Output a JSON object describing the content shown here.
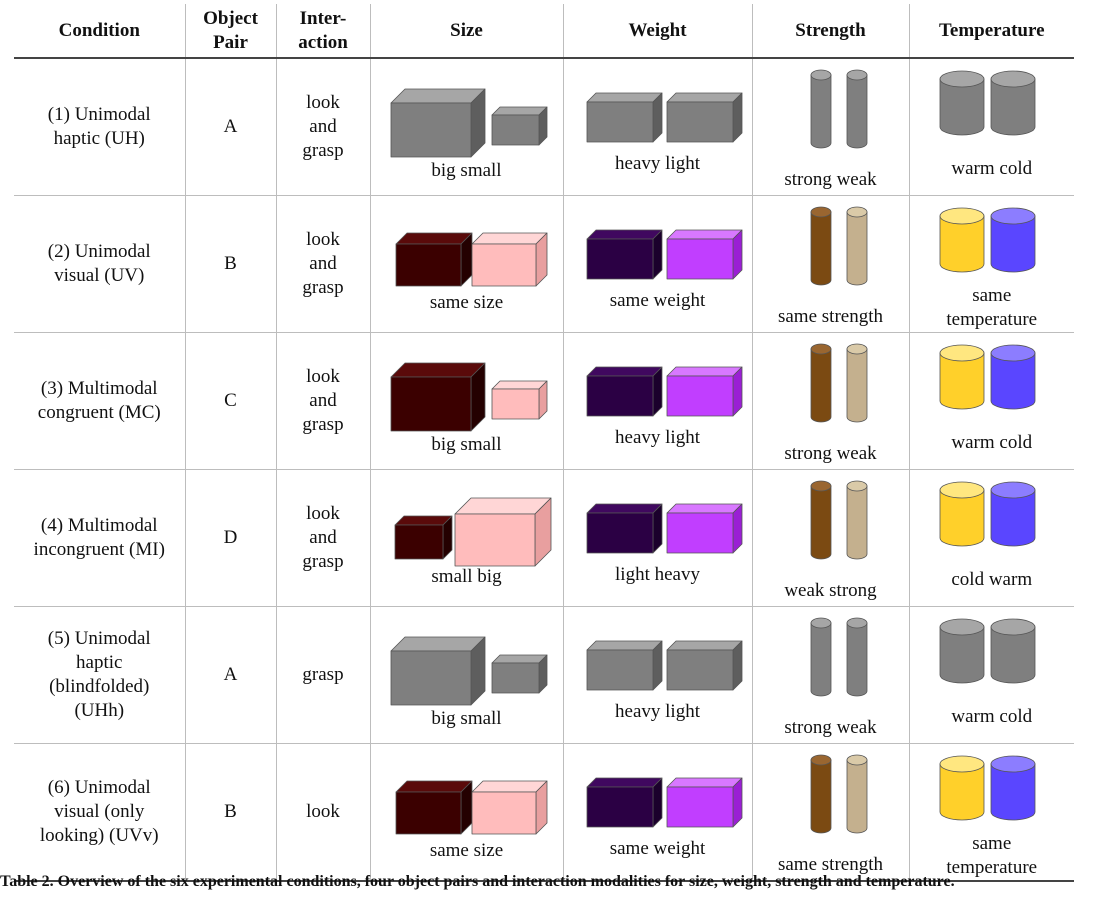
{
  "colors": {
    "gray": {
      "front": "#7f7f7f",
      "top": "#a6a6a6",
      "side": "#5e5e5e"
    },
    "darkred": {
      "front": "#3b0000",
      "top": "#5a0a0a",
      "side": "#240000"
    },
    "pink": {
      "front": "#ffbcbc",
      "top": "#ffd6d6",
      "side": "#e89f9f"
    },
    "darkpurple": {
      "front": "#2b0044",
      "top": "#40085f",
      "side": "#1b002c"
    },
    "violet": {
      "front": "#c13eff",
      "top": "#d878ff",
      "side": "#9a1fd4"
    },
    "brown": {
      "front": "#7b4a12",
      "top": "#9a6630",
      "side": "#5c350a"
    },
    "beige": {
      "front": "#c4b08e",
      "top": "#dacaa8",
      "side": "#a39072"
    },
    "yellow": {
      "front": "#ffd02a",
      "top": "#ffe780",
      "side": "#e0b000"
    },
    "blue": {
      "front": "#5a46ff",
      "top": "#8c7dff",
      "side": "#3a28e0"
    }
  },
  "headers": {
    "condition": "Condition",
    "pair": "Object Pair",
    "interaction": "Inter- action",
    "size": "Size",
    "weight": "Weight",
    "strength": "Strength",
    "temperature": "Temperature"
  },
  "rows": [
    {
      "condition": "(1) Unimodal haptic (UH)",
      "pair": "A",
      "interaction": "look and grasp",
      "size": {
        "label": "big small",
        "left": "gray",
        "right": "gray",
        "variant": "bigsmall"
      },
      "weight": {
        "label": "heavy light",
        "left": "gray",
        "right": "gray"
      },
      "strength": {
        "label": "strong weak",
        "left": "gray",
        "right": "gray"
      },
      "temperature": {
        "label": "warm cold",
        "left": "gray",
        "right": "gray"
      }
    },
    {
      "condition": "(2) Unimodal visual (UV)",
      "pair": "B",
      "interaction": "look and grasp",
      "size": {
        "label": "same size",
        "left": "darkred",
        "right": "pink",
        "variant": "same"
      },
      "weight": {
        "label": "same weight",
        "left": "darkpurple",
        "right": "violet"
      },
      "strength": {
        "label": "same strength",
        "left": "brown",
        "right": "beige"
      },
      "temperature": {
        "label": "same temperature",
        "left": "yellow",
        "right": "blue"
      }
    },
    {
      "condition": "(3) Multimodal congruent (MC)",
      "pair": "C",
      "interaction": "look and grasp",
      "size": {
        "label": "big small",
        "left": "darkred",
        "right": "pink",
        "variant": "bigsmall"
      },
      "weight": {
        "label": "heavy light",
        "left": "darkpurple",
        "right": "violet"
      },
      "strength": {
        "label": "strong weak",
        "left": "brown",
        "right": "beige"
      },
      "temperature": {
        "label": "warm cold",
        "left": "yellow",
        "right": "blue"
      }
    },
    {
      "condition": "(4) Multimodal incongruent (MI)",
      "pair": "D",
      "interaction": "look and grasp",
      "size": {
        "label": "small big",
        "left": "darkred",
        "right": "pink",
        "variant": "smallbig"
      },
      "weight": {
        "label": "light heavy",
        "left": "darkpurple",
        "right": "violet"
      },
      "strength": {
        "label": "weak strong",
        "left": "brown",
        "right": "beige"
      },
      "temperature": {
        "label": "cold warm",
        "left": "yellow",
        "right": "blue"
      }
    },
    {
      "condition": "(5) Unimodal haptic (blindfolded) (UHh)",
      "pair": "A",
      "interaction": "grasp",
      "size": {
        "label": "big small",
        "left": "gray",
        "right": "gray",
        "variant": "bigsmall"
      },
      "weight": {
        "label": "heavy light",
        "left": "gray",
        "right": "gray"
      },
      "strength": {
        "label": "strong weak",
        "left": "gray",
        "right": "gray"
      },
      "temperature": {
        "label": "warm cold",
        "left": "gray",
        "right": "gray"
      }
    },
    {
      "condition": "(6) Unimodal visual (only looking) (UVv)",
      "pair": "B",
      "interaction": "look",
      "size": {
        "label": "same size",
        "left": "darkred",
        "right": "pink",
        "variant": "same"
      },
      "weight": {
        "label": "same weight",
        "left": "darkpurple",
        "right": "violet"
      },
      "strength": {
        "label": "same strength",
        "left": "brown",
        "right": "beige"
      },
      "temperature": {
        "label": "same temperature",
        "left": "yellow",
        "right": "blue"
      }
    }
  ],
  "caption": "Table 2. Overview of the six experimental conditions, four object pairs and interaction modalities for size, weight, strength and temperature."
}
